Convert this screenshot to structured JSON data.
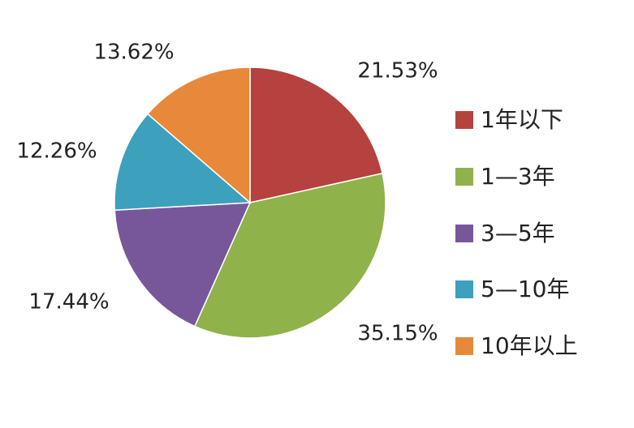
{
  "chart_data": {
    "type": "pie",
    "categories": [
      "1年以下",
      "1—3年",
      "3—5年",
      "5—10年",
      "10年以上"
    ],
    "values": [
      21.53,
      35.15,
      17.44,
      12.26,
      13.62
    ],
    "labels": [
      "21.53%",
      "35.15%",
      "17.44%",
      "12.26%",
      "13.62%"
    ],
    "colors": [
      "#B5423E",
      "#8FB24A",
      "#77579A",
      "#3DA0BD",
      "#E8883A"
    ],
    "start": "top",
    "direction": "clockwise",
    "legend_position": "right"
  }
}
